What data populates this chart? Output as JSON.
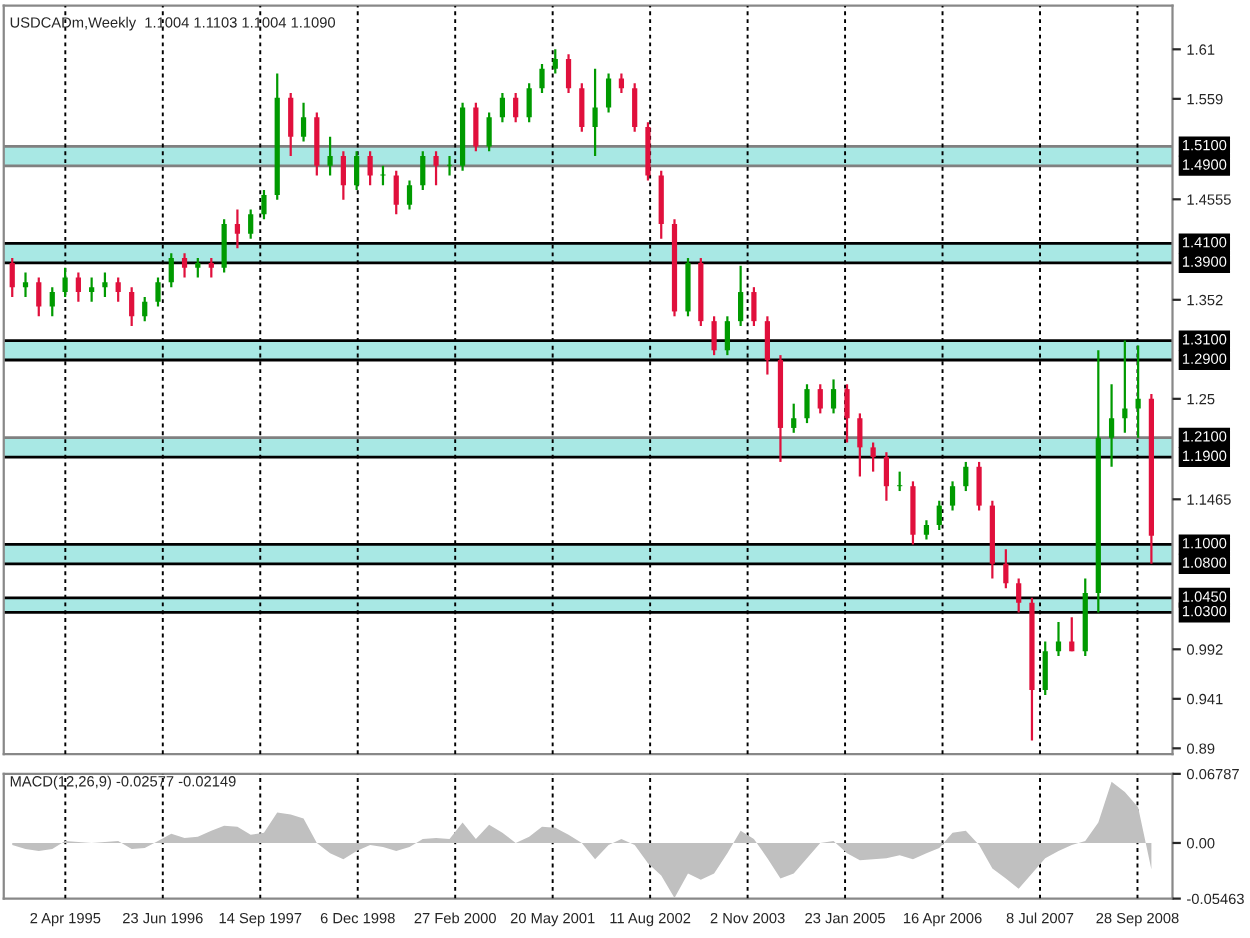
{
  "chart_data": [
    {
      "type": "candlestick",
      "title": "USDCADm,Weekly  1.1004 1.1103 1.1004 1.1090",
      "x": [
        "1994-08",
        "1994-10",
        "1994-12",
        "1995-02",
        "1995-04",
        "1995-06",
        "1995-08",
        "1995-10",
        "1995-12",
        "1996-02",
        "1996-04",
        "1996-06",
        "1996-08",
        "1996-10",
        "1996-12",
        "1997-02",
        "1997-04",
        "1997-06",
        "1997-08",
        "1997-10",
        "1997-12",
        "1998-02",
        "1998-04",
        "1998-06",
        "1998-08",
        "1998-10",
        "1998-12",
        "1999-02",
        "1999-04",
        "1999-06",
        "1999-08",
        "1999-10",
        "1999-12",
        "2000-02",
        "2000-04",
        "2000-06",
        "2000-08",
        "2000-10",
        "2000-12",
        "2001-02",
        "2001-04",
        "2001-06",
        "2001-08",
        "2001-10",
        "2001-12",
        "2002-02",
        "2002-04",
        "2002-06",
        "2002-08",
        "2002-10",
        "2002-12",
        "2003-02",
        "2003-04",
        "2003-06",
        "2003-08",
        "2003-10",
        "2003-12",
        "2004-02",
        "2004-04",
        "2004-06",
        "2004-08",
        "2004-10",
        "2004-12",
        "2005-02",
        "2005-04",
        "2005-06",
        "2005-08",
        "2005-10",
        "2005-12",
        "2006-02",
        "2006-04",
        "2006-06",
        "2006-08",
        "2006-10",
        "2006-12",
        "2007-02",
        "2007-04",
        "2007-06",
        "2007-08",
        "2007-10",
        "2007-12",
        "2008-02",
        "2008-04",
        "2008-06",
        "2008-08",
        "2008-10",
        "2008-12"
      ],
      "ohlc": [
        [
          1.39,
          1.395,
          1.355,
          1.365
        ],
        [
          1.365,
          1.38,
          1.355,
          1.37
        ],
        [
          1.37,
          1.375,
          1.335,
          1.345
        ],
        [
          1.345,
          1.365,
          1.335,
          1.36
        ],
        [
          1.36,
          1.385,
          1.355,
          1.375
        ],
        [
          1.375,
          1.38,
          1.35,
          1.36
        ],
        [
          1.36,
          1.375,
          1.35,
          1.365
        ],
        [
          1.365,
          1.38,
          1.355,
          1.37
        ],
        [
          1.37,
          1.375,
          1.35,
          1.36
        ],
        [
          1.36,
          1.365,
          1.325,
          1.335
        ],
        [
          1.335,
          1.355,
          1.33,
          1.35
        ],
        [
          1.35,
          1.375,
          1.345,
          1.37
        ],
        [
          1.37,
          1.4,
          1.365,
          1.395
        ],
        [
          1.395,
          1.4,
          1.375,
          1.385
        ],
        [
          1.385,
          1.395,
          1.375,
          1.39
        ],
        [
          1.39,
          1.395,
          1.375,
          1.385
        ],
        [
          1.385,
          1.435,
          1.38,
          1.43
        ],
        [
          1.43,
          1.445,
          1.405,
          1.42
        ],
        [
          1.42,
          1.445,
          1.415,
          1.44
        ],
        [
          1.44,
          1.465,
          1.435,
          1.46
        ],
        [
          1.46,
          1.585,
          1.455,
          1.56
        ],
        [
          1.56,
          1.565,
          1.5,
          1.52
        ],
        [
          1.52,
          1.555,
          1.515,
          1.54
        ],
        [
          1.54,
          1.545,
          1.48,
          1.49
        ],
        [
          1.49,
          1.52,
          1.48,
          1.5
        ],
        [
          1.5,
          1.505,
          1.455,
          1.47
        ],
        [
          1.47,
          1.505,
          1.465,
          1.5
        ],
        [
          1.5,
          1.505,
          1.47,
          1.48
        ],
        [
          1.48,
          1.49,
          1.47,
          1.48
        ],
        [
          1.48,
          1.485,
          1.44,
          1.45
        ],
        [
          1.45,
          1.475,
          1.445,
          1.47
        ],
        [
          1.47,
          1.505,
          1.465,
          1.5
        ],
        [
          1.5,
          1.505,
          1.47,
          1.49
        ],
        [
          1.49,
          1.5,
          1.48,
          1.49
        ],
        [
          1.49,
          1.555,
          1.485,
          1.55
        ],
        [
          1.55,
          1.555,
          1.505,
          1.51
        ],
        [
          1.51,
          1.545,
          1.505,
          1.54
        ],
        [
          1.54,
          1.565,
          1.535,
          1.56
        ],
        [
          1.56,
          1.565,
          1.535,
          1.54
        ],
        [
          1.54,
          1.575,
          1.535,
          1.57
        ],
        [
          1.57,
          1.595,
          1.565,
          1.59
        ],
        [
          1.59,
          1.61,
          1.585,
          1.6
        ],
        [
          1.6,
          1.605,
          1.565,
          1.57
        ],
        [
          1.57,
          1.575,
          1.525,
          1.53
        ],
        [
          1.53,
          1.59,
          1.5,
          1.55
        ],
        [
          1.55,
          1.585,
          1.545,
          1.58
        ],
        [
          1.58,
          1.585,
          1.565,
          1.57
        ],
        [
          1.57,
          1.575,
          1.525,
          1.53
        ],
        [
          1.53,
          1.535,
          1.475,
          1.48
        ],
        [
          1.48,
          1.485,
          1.415,
          1.43
        ],
        [
          1.43,
          1.435,
          1.335,
          1.34
        ],
        [
          1.34,
          1.395,
          1.335,
          1.39
        ],
        [
          1.39,
          1.395,
          1.325,
          1.33
        ],
        [
          1.33,
          1.335,
          1.295,
          1.3
        ],
        [
          1.3,
          1.335,
          1.295,
          1.33
        ],
        [
          1.33,
          1.387,
          1.325,
          1.36
        ],
        [
          1.36,
          1.365,
          1.325,
          1.33
        ],
        [
          1.33,
          1.335,
          1.275,
          1.29
        ],
        [
          1.29,
          1.295,
          1.185,
          1.22
        ],
        [
          1.22,
          1.245,
          1.215,
          1.23
        ],
        [
          1.23,
          1.265,
          1.225,
          1.26
        ],
        [
          1.26,
          1.265,
          1.235,
          1.24
        ],
        [
          1.24,
          1.27,
          1.235,
          1.26
        ],
        [
          1.26,
          1.265,
          1.205,
          1.23
        ],
        [
          1.23,
          1.235,
          1.17,
          1.2
        ],
        [
          1.2,
          1.205,
          1.175,
          1.19
        ],
        [
          1.19,
          1.195,
          1.145,
          1.16
        ],
        [
          1.16,
          1.175,
          1.155,
          1.16
        ],
        [
          1.16,
          1.165,
          1.1,
          1.11
        ],
        [
          1.11,
          1.125,
          1.105,
          1.12
        ],
        [
          1.12,
          1.145,
          1.115,
          1.14
        ],
        [
          1.14,
          1.165,
          1.135,
          1.16
        ],
        [
          1.16,
          1.185,
          1.155,
          1.18
        ],
        [
          1.18,
          1.185,
          1.135,
          1.14
        ],
        [
          1.14,
          1.145,
          1.065,
          1.08
        ],
        [
          1.08,
          1.095,
          1.055,
          1.06
        ],
        [
          1.06,
          1.065,
          1.03,
          1.04
        ],
        [
          1.04,
          1.045,
          0.898,
          0.95
        ],
        [
          0.95,
          1.0,
          0.945,
          0.99
        ],
        [
          0.99,
          1.02,
          0.985,
          1.0
        ],
        [
          1.0,
          1.025,
          0.99,
          0.99
        ],
        [
          0.99,
          1.065,
          0.985,
          1.05
        ],
        [
          1.05,
          1.3,
          1.03,
          1.21
        ],
        [
          1.21,
          1.265,
          1.18,
          1.23
        ],
        [
          1.23,
          1.31,
          1.215,
          1.24
        ],
        [
          1.24,
          1.305,
          1.21,
          1.25
        ],
        [
          1.25,
          1.255,
          1.08,
          1.109
        ]
      ],
      "ylim": [
        0.884,
        1.655
      ],
      "yticks": [
        1.61,
        1.559,
        1.4555,
        1.352,
        1.25,
        1.1465,
        0.992,
        0.941,
        0.89
      ],
      "xlim": [
        "1994-06-23",
        "2009-03-08"
      ],
      "xticks": [
        {
          "value": "1995-04-02",
          "label": null
        },
        {
          "value": "1996-06-23",
          "label": null
        },
        {
          "value": "1997-09-14",
          "label": null
        },
        {
          "value": "1998-12-06",
          "label": null
        },
        {
          "value": "2000-02-27",
          "label": null
        },
        {
          "value": "2001-05-20",
          "label": null
        },
        {
          "value": "2002-08-11",
          "label": null
        },
        {
          "value": "2003-11-02",
          "label": null
        },
        {
          "value": "2005-01-23",
          "label": null
        },
        {
          "value": "2006-04-16",
          "label": null
        },
        {
          "value": "2007-07-08",
          "label": null
        },
        {
          "value": "2008-09-28",
          "label": null
        }
      ],
      "tick_labels": "y",
      "grid": "x",
      "bands": [
        {
          "axis": "y",
          "from": 1.49,
          "to": 1.51,
          "color": "#a8e8e4"
        },
        {
          "axis": "y",
          "from": 1.39,
          "to": 1.41,
          "color": "#a8e8e4"
        },
        {
          "axis": "y",
          "from": 1.29,
          "to": 1.31,
          "color": "#a8e8e4"
        },
        {
          "axis": "y",
          "from": 1.19,
          "to": 1.21,
          "color": "#a8e8e4"
        },
        {
          "axis": "y",
          "from": 1.08,
          "to": 1.1,
          "color": "#a8e8e4"
        },
        {
          "axis": "y",
          "from": 1.03,
          "to": 1.045,
          "color": "#a8e8e4"
        }
      ],
      "ref_lines": [
        {
          "axis": "y",
          "value": 1.51,
          "label": "1.5100",
          "color": "#808080"
        },
        {
          "axis": "y",
          "value": 1.49,
          "label": "1.4900",
          "color": "#808080"
        },
        {
          "axis": "y",
          "value": 1.41,
          "label": "1.4100",
          "color": "#000000"
        },
        {
          "axis": "y",
          "value": 1.39,
          "label": "1.3900",
          "color": "#000000"
        },
        {
          "axis": "y",
          "value": 1.31,
          "label": "1.3100",
          "color": "#000000"
        },
        {
          "axis": "y",
          "value": 1.29,
          "label": "1.2900",
          "color": "#000000"
        },
        {
          "axis": "y",
          "value": 1.21,
          "label": "1.2100",
          "color": "#808080"
        },
        {
          "axis": "y",
          "value": 1.19,
          "label": "1.1900",
          "color": "#000000"
        },
        {
          "axis": "y",
          "value": 1.1,
          "label": "1.1000",
          "color": "#000000"
        },
        {
          "axis": "y",
          "value": 1.08,
          "label": "1.0800",
          "color": "#000000"
        },
        {
          "axis": "y",
          "value": 1.045,
          "label": "1.0450",
          "color": "#000000"
        },
        {
          "axis": "y",
          "value": 1.03,
          "label": "1.0300",
          "color": "#000000"
        }
      ]
    },
    {
      "type": "area",
      "title": "MACD(12,26,9) -0.02577 -0.02149",
      "x": [
        "1994-08",
        "1994-10",
        "1994-12",
        "1995-02",
        "1995-04",
        "1995-06",
        "1995-08",
        "1995-10",
        "1995-12",
        "1996-02",
        "1996-04",
        "1996-06",
        "1996-08",
        "1996-10",
        "1996-12",
        "1997-02",
        "1997-04",
        "1997-06",
        "1997-08",
        "1997-10",
        "1997-12",
        "1998-02",
        "1998-04",
        "1998-06",
        "1998-08",
        "1998-10",
        "1998-12",
        "1999-02",
        "1999-04",
        "1999-06",
        "1999-08",
        "1999-10",
        "1999-12",
        "2000-02",
        "2000-04",
        "2000-06",
        "2000-08",
        "2000-10",
        "2000-12",
        "2001-02",
        "2001-04",
        "2001-06",
        "2001-08",
        "2001-10",
        "2001-12",
        "2002-02",
        "2002-04",
        "2002-06",
        "2002-08",
        "2002-10",
        "2002-12",
        "2003-02",
        "2003-04",
        "2003-06",
        "2003-08",
        "2003-10",
        "2003-12",
        "2004-02",
        "2004-04",
        "2004-06",
        "2004-08",
        "2004-10",
        "2004-12",
        "2005-02",
        "2005-04",
        "2005-06",
        "2005-08",
        "2005-10",
        "2005-12",
        "2006-02",
        "2006-04",
        "2006-06",
        "2006-08",
        "2006-10",
        "2006-12",
        "2007-02",
        "2007-04",
        "2007-06",
        "2007-08",
        "2007-10",
        "2007-12",
        "2008-02",
        "2008-04",
        "2008-06",
        "2008-08",
        "2008-10",
        "2008-12"
      ],
      "series": [
        {
          "color": "#c0c0c0",
          "values": [
            -0.002,
            -0.006,
            -0.008,
            -0.006,
            0.002,
            0.001,
            0.0,
            0.001,
            0.002,
            -0.006,
            -0.005,
            0.002,
            0.009,
            0.005,
            0.006,
            0.012,
            0.017,
            0.016,
            0.008,
            0.01,
            0.03,
            0.028,
            0.024,
            0.0,
            -0.01,
            -0.016,
            -0.008,
            -0.002,
            -0.004,
            -0.008,
            -0.004,
            0.004,
            0.005,
            0.004,
            0.02,
            0.004,
            0.018,
            0.01,
            0.0,
            0.006,
            0.016,
            0.015,
            0.008,
            0.0,
            -0.016,
            -0.002,
            0.004,
            -0.002,
            -0.02,
            -0.032,
            -0.054,
            -0.03,
            -0.036,
            -0.03,
            -0.01,
            0.012,
            0.004,
            -0.015,
            -0.035,
            -0.03,
            -0.015,
            0.0,
            0.002,
            -0.01,
            -0.017,
            -0.016,
            -0.015,
            -0.012,
            -0.016,
            -0.01,
            -0.005,
            0.01,
            0.012,
            -0.002,
            -0.025,
            -0.035,
            -0.045,
            -0.03,
            -0.015,
            -0.008,
            -0.002,
            0.002,
            0.02,
            0.06,
            0.05,
            0.035,
            -0.026
          ]
        }
      ],
      "ylim": [
        -0.05463,
        0.06787
      ],
      "yticks": [
        {
          "value": 0.06787,
          "label": "0.06787"
        },
        {
          "value": 0.0,
          "label": "0.00"
        },
        {
          "value": -0.05463,
          "label": "-0.05463"
        }
      ],
      "xlim": [
        "1994-06-23",
        "2009-03-08"
      ],
      "xticks": [
        {
          "value": "1995-04-02",
          "label": "2 Apr 1995"
        },
        {
          "value": "1996-06-23",
          "label": "23 Jun 1996"
        },
        {
          "value": "1997-09-14",
          "label": "14 Sep 1997"
        },
        {
          "value": "1998-12-06",
          "label": "6 Dec 1998"
        },
        {
          "value": "2000-02-27",
          "label": "27 Feb 2000"
        },
        {
          "value": "2001-05-20",
          "label": "20 May 2001"
        },
        {
          "value": "2002-08-11",
          "label": "11 Aug 2002"
        },
        {
          "value": "2003-11-02",
          "label": "2 Nov 2003"
        },
        {
          "value": "2005-01-23",
          "label": "23 Jan 2005"
        },
        {
          "value": "2006-04-16",
          "label": "16 Apr 2006"
        },
        {
          "value": "2007-07-08",
          "label": "8 Jul 2007"
        },
        {
          "value": "2008-09-28",
          "label": "28 Sep 2008"
        }
      ],
      "grid": "x"
    }
  ]
}
